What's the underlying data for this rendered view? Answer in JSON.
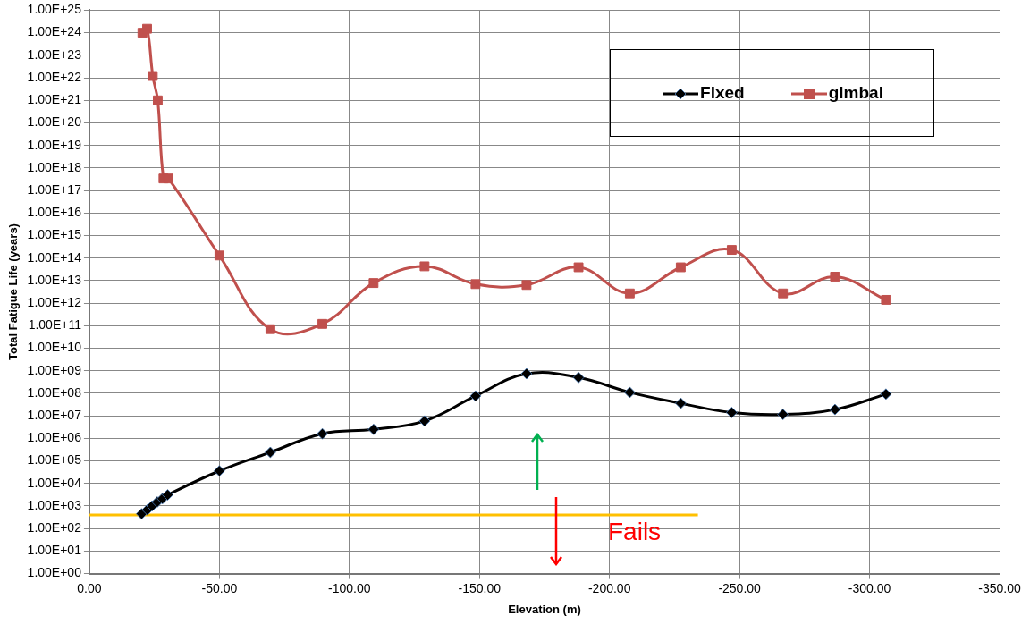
{
  "chart_data": {
    "type": "line",
    "xlabel": "Elevation (m)",
    "ylabel": "Total Fatigue Life (years)",
    "log": "y",
    "grid": true,
    "legend": "top right",
    "line_style": "solid",
    "xlim": [
      0,
      -350
    ],
    "xticks": [
      {
        "value": 0,
        "label": "0.00"
      },
      {
        "value": -50,
        "label": "-50.00"
      },
      {
        "value": -100,
        "label": "-100.00"
      },
      {
        "value": -150,
        "label": "-150.00"
      },
      {
        "value": -200,
        "label": "-200.00"
      },
      {
        "value": -250,
        "label": "-250.00"
      },
      {
        "value": -300,
        "label": "-300.00"
      },
      {
        "value": -350,
        "label": "-350.00"
      }
    ],
    "ylim": [
      1,
      1e+25
    ],
    "yticks": [
      {
        "value": 1,
        "label": "1.00E+00"
      },
      {
        "value": 10.0,
        "label": "1.00E+01"
      },
      {
        "value": 100.0,
        "label": "1.00E+02"
      },
      {
        "value": 1000.0,
        "label": "1.00E+03"
      },
      {
        "value": 10000.0,
        "label": "1.00E+04"
      },
      {
        "value": 100000.0,
        "label": "1.00E+05"
      },
      {
        "value": 1000000.0,
        "label": "1.00E+06"
      },
      {
        "value": 10000000.0,
        "label": "1.00E+07"
      },
      {
        "value": 100000000.0,
        "label": "1.00E+08"
      },
      {
        "value": 1000000000.0,
        "label": "1.00E+09"
      },
      {
        "value": 10000000000.0,
        "label": "1.00E+10"
      },
      {
        "value": 100000000000.0,
        "label": "1.00E+11"
      },
      {
        "value": 1000000000000.0,
        "label": "1.00E+12"
      },
      {
        "value": 10000000000000.0,
        "label": "1.00E+13"
      },
      {
        "value": 100000000000000.0,
        "label": "1.00E+14"
      },
      {
        "value": 1000000000000000.0,
        "label": "1.00E+15"
      },
      {
        "value": 1e+16,
        "label": "1.00E+16"
      },
      {
        "value": 1e+17,
        "label": "1.00E+17"
      },
      {
        "value": 1e+18,
        "label": "1.00E+18"
      },
      {
        "value": 1e+19,
        "label": "1.00E+19"
      },
      {
        "value": 1e+20,
        "label": "1.00E+20"
      },
      {
        "value": 1e+21,
        "label": "1.00E+21"
      },
      {
        "value": 1e+22,
        "label": "1.00E+22"
      },
      {
        "value": 1e+23,
        "label": "1.00E+23"
      },
      {
        "value": 1e+24,
        "label": "1.00E+24"
      },
      {
        "value": 1e+25,
        "label": "1.00E+25"
      }
    ],
    "series": [
      {
        "name": "Fixed",
        "color": "#000000",
        "marker": "diamond",
        "x": [
          -20.1,
          -22.3,
          -24.1,
          -26.1,
          -28.1,
          -30.1,
          -50,
          -69.6,
          -89.6,
          -109.3,
          -128.9,
          -148.5,
          -168.1,
          -188.1,
          -207.8,
          -227.4,
          -247,
          -266.7,
          -286.7,
          -306.3
        ],
        "values": [
          450,
          680,
          1000,
          1500,
          2100,
          3100,
          36000,
          240000,
          1600000,
          2500000,
          5900000,
          76000000,
          740000000,
          500000000,
          110000000,
          36000000,
          14000000,
          11500000,
          19000000,
          92000000
        ]
      },
      {
        "name": "gimbal",
        "color": "#c0504d",
        "marker": "square",
        "x": [
          -20.4,
          -22.2,
          -24.4,
          -26.3,
          -28.5,
          -30.4,
          -50,
          -69.6,
          -89.6,
          -109.3,
          -128.9,
          -148.5,
          -168.1,
          -188.1,
          -207.8,
          -227.4,
          -247,
          -266.7,
          -286.7,
          -306.3
        ],
        "values": [
          1e+24,
          1.5e+24,
          1.2e+22,
          1e+21,
          3.4e+17,
          3.4e+17,
          130000000000000.0,
          70000000000.0,
          120000000000.0,
          7800000000000.0,
          43000000000000.0,
          7000000000000.0,
          6400000000000.0,
          39000000000000.0,
          2700000000000.0,
          39000000000000.0,
          230000000000000.0,
          2700000000000.0,
          15000000000000.0,
          1400000000000.0
        ]
      },
      {
        "color": "#ffc000",
        "marker": "none",
        "x": [
          0,
          -234
        ],
        "values": [
          400,
          400
        ]
      }
    ],
    "annotations": [
      "Fails"
    ]
  }
}
